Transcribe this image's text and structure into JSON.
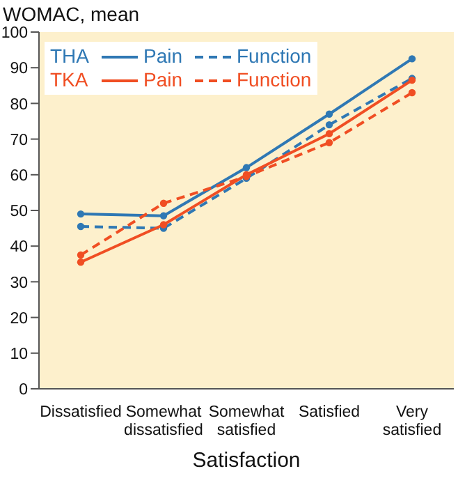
{
  "chart_data": {
    "type": "line",
    "ylabel": "WOMAC, mean",
    "xlabel": "Satisfaction",
    "categories": [
      "Dissatisfied",
      "Somewhat dissatisfied",
      "Somewhat satisfied",
      "Satisfied",
      "Very satisfied"
    ],
    "series": [
      {
        "name": "Pain",
        "color": "#2f78b4",
        "line_style": "solid",
        "values": [
          49,
          48.5,
          62,
          77,
          92.5
        ]
      },
      {
        "name": "Function",
        "color": "#2f78b4",
        "line_style": "dashed",
        "values": [
          45.5,
          45,
          59,
          74,
          87
        ]
      },
      {
        "name": "Pain",
        "color": "#f04e23",
        "line_style": "solid",
        "values": [
          35.5,
          46,
          60,
          71.5,
          86.5
        ]
      },
      {
        "name": "Function",
        "color": "#f04e23",
        "line_style": "dashed",
        "values": [
          37.5,
          52,
          59.5,
          69,
          83
        ]
      }
    ],
    "annotations": [
      "THA",
      "TKA"
    ],
    "ylim": [
      0,
      100
    ],
    "yticks": [
      0,
      10,
      20,
      30,
      40,
      50,
      60,
      70,
      80,
      90,
      100
    ],
    "grid": false,
    "legend": "top left",
    "marker": "circle"
  }
}
